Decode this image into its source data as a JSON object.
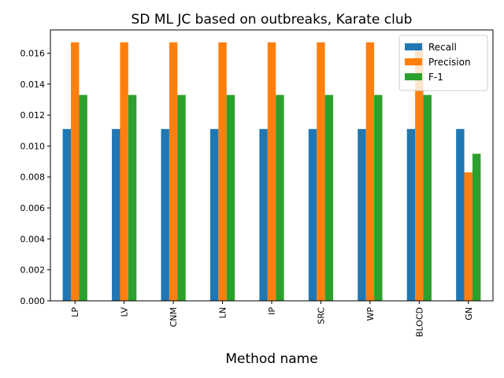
{
  "chart_data": {
    "type": "bar",
    "title": "SD ML JC based on outbreaks, Karate club",
    "xlabel": "Method name",
    "ylabel": "",
    "categories": [
      "LP",
      "LV",
      "CNM",
      "LN",
      "IP",
      "SRC",
      "WP",
      "BLOCD",
      "GN"
    ],
    "series": [
      {
        "name": "Recall",
        "color": "#1f77b4",
        "values": [
          0.0111,
          0.0111,
          0.0111,
          0.0111,
          0.0111,
          0.0111,
          0.0111,
          0.0111,
          0.0111
        ]
      },
      {
        "name": "Precision",
        "color": "#ff7f0e",
        "values": [
          0.0167,
          0.0167,
          0.0167,
          0.0167,
          0.0167,
          0.0167,
          0.0167,
          0.0167,
          0.0083
        ]
      },
      {
        "name": "F-1",
        "color": "#2ca02c",
        "values": [
          0.0133,
          0.0133,
          0.0133,
          0.0133,
          0.0133,
          0.0133,
          0.0133,
          0.0133,
          0.0095
        ]
      }
    ],
    "yticks": [
      "0.000",
      "0.002",
      "0.004",
      "0.006",
      "0.008",
      "0.010",
      "0.012",
      "0.014",
      "0.016"
    ],
    "ylim": [
      0,
      0.0175
    ],
    "grid": false,
    "legend_position": "top-right"
  }
}
